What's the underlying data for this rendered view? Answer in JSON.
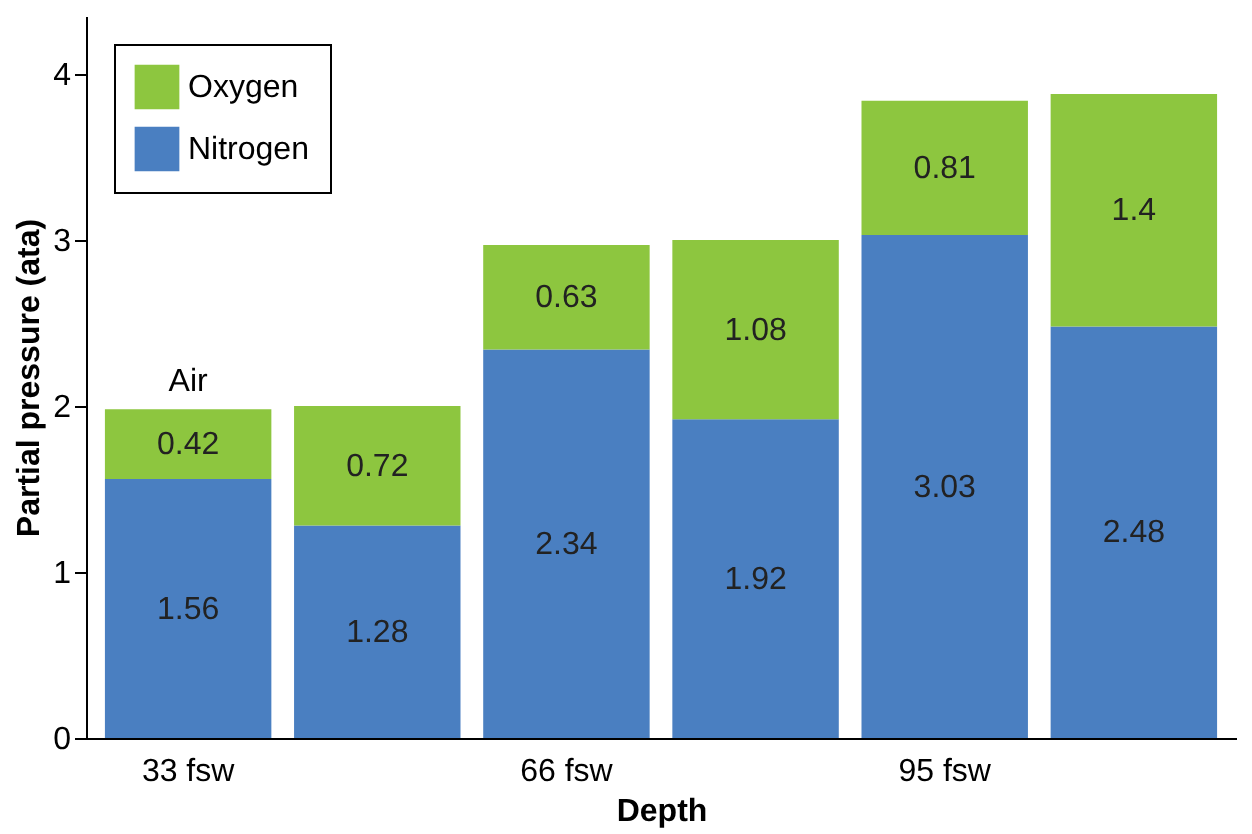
{
  "chart_data": {
    "type": "bar",
    "stacked": true,
    "xlabel": "Depth",
    "ylabel": "Partial pressure (ata)",
    "categories": [
      "33 fsw",
      null,
      "66 fsw",
      null,
      "95 fsw",
      null
    ],
    "series": [
      {
        "name": "Nitrogen",
        "color": "#4a7fc1",
        "values": [
          1.56,
          1.28,
          2.34,
          1.92,
          3.03,
          2.48
        ]
      },
      {
        "name": "Oxygen",
        "color": "#8dc63f",
        "values": [
          0.42,
          0.72,
          0.63,
          1.08,
          0.81,
          1.4
        ]
      }
    ],
    "ylim": [
      0,
      4.35
    ],
    "yticks": [
      0,
      1,
      2,
      3,
      4
    ],
    "grid": false,
    "legend": "top left",
    "data_labels": true,
    "annotations": [
      {
        "text": "Air",
        "x": "33 fsw",
        "y": 1.98
      }
    ]
  }
}
